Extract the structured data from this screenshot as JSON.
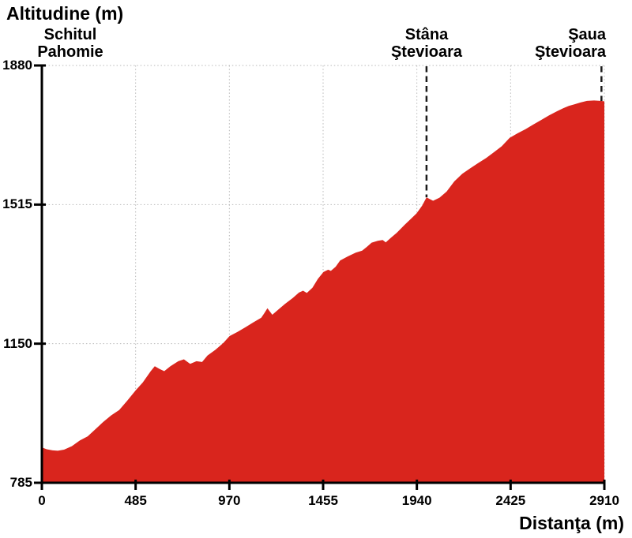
{
  "chart_data": {
    "type": "area",
    "title": "Altitudine (m)",
    "xlabel": "Distanţa (m)",
    "ylabel": "Altitudine (m)",
    "xlim": [
      0,
      2910
    ],
    "ylim": [
      785,
      1880
    ],
    "x_ticks": [
      0,
      485,
      970,
      1455,
      1940,
      2425,
      2910
    ],
    "y_ticks": [
      1880,
      1515,
      1150,
      785
    ],
    "grid": true,
    "legend": "none",
    "fill_color": "#d9251d",
    "series": [
      {
        "name": "altitude-profile",
        "points": [
          [
            0,
            878
          ],
          [
            25,
            873
          ],
          [
            55,
            870
          ],
          [
            82,
            869
          ],
          [
            115,
            872
          ],
          [
            155,
            881
          ],
          [
            196,
            896
          ],
          [
            237,
            907
          ],
          [
            278,
            926
          ],
          [
            318,
            945
          ],
          [
            359,
            962
          ],
          [
            400,
            976
          ],
          [
            441,
            1000
          ],
          [
            486,
            1028
          ],
          [
            522,
            1048
          ],
          [
            563,
            1078
          ],
          [
            584,
            1091
          ],
          [
            608,
            1084
          ],
          [
            633,
            1078
          ],
          [
            665,
            1091
          ],
          [
            706,
            1104
          ],
          [
            735,
            1109
          ],
          [
            767,
            1097
          ],
          [
            800,
            1104
          ],
          [
            829,
            1102
          ],
          [
            857,
            1119
          ],
          [
            898,
            1134
          ],
          [
            939,
            1152
          ],
          [
            971,
            1170
          ],
          [
            1012,
            1181
          ],
          [
            1053,
            1193
          ],
          [
            1094,
            1206
          ],
          [
            1135,
            1218
          ],
          [
            1151,
            1230
          ],
          [
            1167,
            1243
          ],
          [
            1192,
            1226
          ],
          [
            1224,
            1240
          ],
          [
            1257,
            1254
          ],
          [
            1298,
            1270
          ],
          [
            1330,
            1284
          ],
          [
            1351,
            1289
          ],
          [
            1371,
            1283
          ],
          [
            1400,
            1297
          ],
          [
            1428,
            1320
          ],
          [
            1457,
            1338
          ],
          [
            1481,
            1344
          ],
          [
            1495,
            1341
          ],
          [
            1520,
            1352
          ],
          [
            1543,
            1368
          ],
          [
            1583,
            1379
          ],
          [
            1624,
            1389
          ],
          [
            1657,
            1394
          ],
          [
            1681,
            1404
          ],
          [
            1706,
            1415
          ],
          [
            1738,
            1420
          ],
          [
            1763,
            1422
          ],
          [
            1779,
            1416
          ],
          [
            1804,
            1427
          ],
          [
            1836,
            1441
          ],
          [
            1877,
            1462
          ],
          [
            1910,
            1478
          ],
          [
            1939,
            1492
          ],
          [
            1967,
            1512
          ],
          [
            1990,
            1534
          ],
          [
            2024,
            1525
          ],
          [
            2057,
            1533
          ],
          [
            2094,
            1549
          ],
          [
            2134,
            1576
          ],
          [
            2175,
            1596
          ],
          [
            2216,
            1610
          ],
          [
            2257,
            1624
          ],
          [
            2298,
            1637
          ],
          [
            2338,
            1652
          ],
          [
            2379,
            1668
          ],
          [
            2420,
            1690
          ],
          [
            2461,
            1702
          ],
          [
            2502,
            1713
          ],
          [
            2542,
            1725
          ],
          [
            2583,
            1737
          ],
          [
            2624,
            1749
          ],
          [
            2665,
            1760
          ],
          [
            2698,
            1768
          ],
          [
            2726,
            1774
          ],
          [
            2755,
            1778
          ],
          [
            2787,
            1783
          ],
          [
            2820,
            1787
          ],
          [
            2857,
            1788
          ],
          [
            2889,
            1787
          ],
          [
            2910,
            1786
          ]
        ]
      }
    ],
    "markers": [
      {
        "label_line1": "Schitul",
        "label_line2": "Pahomie",
        "distance": 0,
        "dashed_line": false
      },
      {
        "label_line1": "Stâna",
        "label_line2": "Ştevioara",
        "distance": 1990,
        "dashed_line": true
      },
      {
        "label_line1": "Şaua",
        "label_line2": "Ştevioara",
        "distance": 2895,
        "dashed_line": true
      }
    ]
  }
}
